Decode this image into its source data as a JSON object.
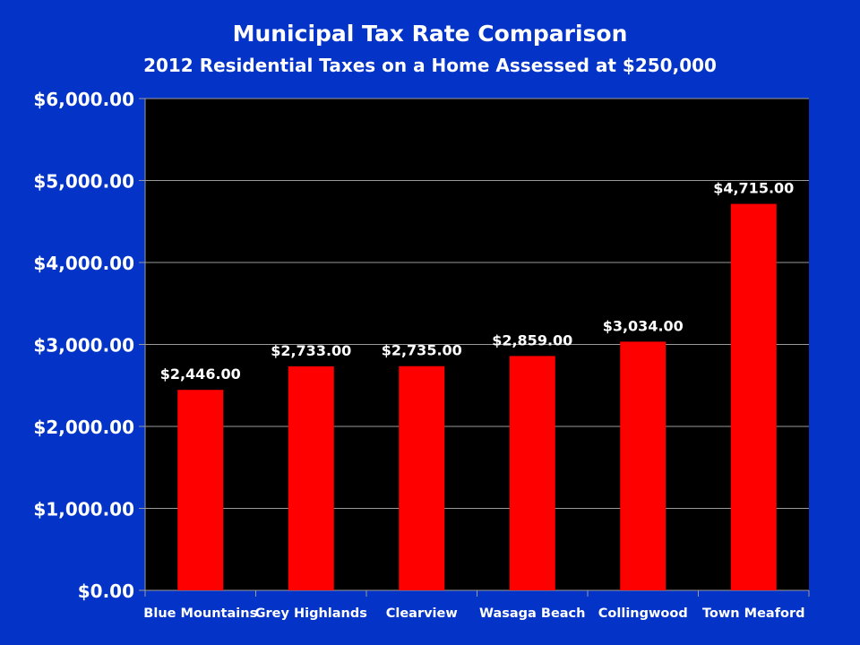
{
  "colors": {
    "background": "#0433c8",
    "plot_area": "#000000",
    "bar": "#ff0000",
    "gridline": "#9a9a9a",
    "text": "#ffffff"
  },
  "chart_data": {
    "type": "bar",
    "title": "Municipal Tax Rate Comparison",
    "subtitle": "2012 Residential Taxes on a Home Assessed at $250,000",
    "xlabel": "",
    "ylabel": "",
    "categories": [
      "Blue Mountains",
      "Grey Highlands",
      "Clearview",
      "Wasaga Beach",
      "Collingwood",
      "Town Meaford"
    ],
    "values": [
      2446,
      2733,
      2735,
      2859,
      3034,
      4715
    ],
    "data_labels": [
      "$2,446.00",
      "$2,733.00",
      "$2,735.00",
      "$2,859.00",
      "$3,034.00",
      "$4,715.00"
    ],
    "ylim": [
      0,
      6000
    ],
    "yticks": [
      0,
      1000,
      2000,
      3000,
      4000,
      5000,
      6000
    ],
    "ytick_labels": [
      "$0.00",
      "$1,000.00",
      "$2,000.00",
      "$3,000.00",
      "$4,000.00",
      "$5,000.00",
      "$6,000.00"
    ],
    "grid": true,
    "legend": "none"
  }
}
